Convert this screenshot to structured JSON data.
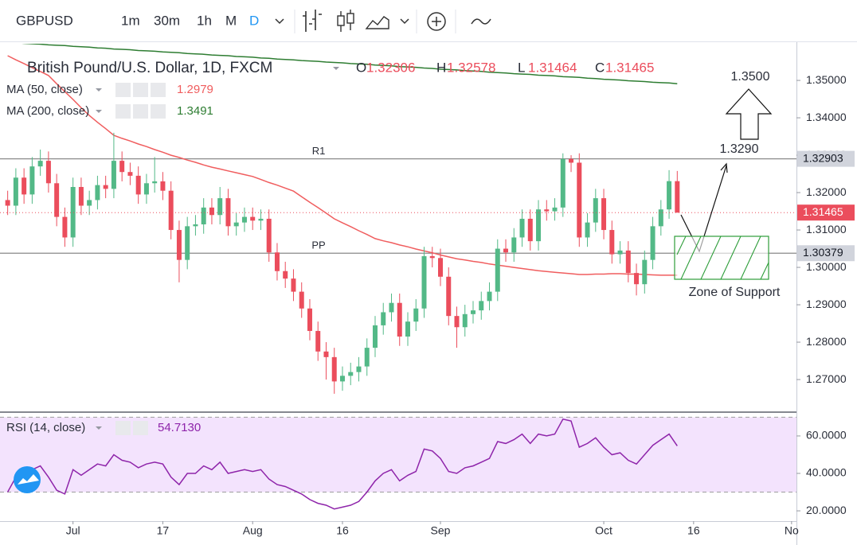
{
  "toolbar": {
    "symbol": "GBPUSD",
    "intervals": [
      "1m",
      "30m",
      "1h",
      "M",
      "D"
    ]
  },
  "chart_data": [
    {
      "type": "candlestick",
      "title": "British Pound/U.S. Dollar, 1D, FXCM",
      "ohlc_keys": [
        "O",
        "H",
        "L",
        "C"
      ],
      "up_color": "#53b987",
      "down_color": "#eb4d5c",
      "open": [
        1.318,
        1.3165,
        1.324,
        1.3195,
        1.327,
        1.3285,
        1.3225,
        1.3135,
        1.308,
        1.3215,
        1.3165,
        1.318,
        1.322,
        1.321,
        1.3285,
        1.3255,
        1.3245,
        1.3195,
        1.3225,
        1.323,
        1.3205,
        1.31,
        1.302,
        1.311,
        1.3115,
        1.316,
        1.314,
        1.3185,
        1.311,
        1.312,
        1.3135,
        1.3125,
        1.313,
        1.304,
        1.299,
        1.297,
        1.2935,
        1.289,
        1.283,
        1.2775,
        1.276,
        1.2695,
        1.271,
        1.272,
        1.2735,
        1.2785,
        1.2845,
        1.288,
        1.2905,
        1.2815,
        1.2855,
        1.289,
        1.303,
        1.3025,
        1.2975,
        1.287,
        1.284,
        1.2875,
        1.2885,
        1.291,
        1.2935,
        1.305,
        1.304,
        1.308,
        1.313,
        1.307,
        1.3155,
        1.315,
        1.316,
        1.329,
        1.328,
        1.308,
        1.312,
        1.3185,
        1.31,
        1.3035,
        1.3045,
        1.2985,
        1.2955,
        1.302,
        1.311,
        1.3155,
        1.32306
      ],
      "high": [
        1.3205,
        1.3265,
        1.3265,
        1.3295,
        1.3315,
        1.331,
        1.325,
        1.316,
        1.324,
        1.324,
        1.3205,
        1.3245,
        1.3245,
        1.336,
        1.331,
        1.328,
        1.327,
        1.325,
        1.3295,
        1.3255,
        1.323,
        1.3125,
        1.3135,
        1.314,
        1.3185,
        1.3185,
        1.3215,
        1.321,
        1.3145,
        1.316,
        1.316,
        1.3155,
        1.3155,
        1.3065,
        1.3015,
        1.2995,
        1.296,
        1.2915,
        1.2855,
        1.28,
        1.2785,
        1.2735,
        1.2745,
        1.276,
        1.281,
        1.287,
        1.2905,
        1.293,
        1.293,
        1.288,
        1.2915,
        1.3055,
        1.3055,
        1.305,
        1.3,
        1.2895,
        1.29,
        1.291,
        1.2935,
        1.296,
        1.3075,
        1.3075,
        1.3105,
        1.3155,
        1.3155,
        1.318,
        1.318,
        1.3185,
        1.3305,
        1.33,
        1.3305,
        1.3145,
        1.321,
        1.321,
        1.3125,
        1.307,
        1.307,
        1.301,
        1.3045,
        1.3135,
        1.318,
        1.326,
        1.32578
      ],
      "low": [
        1.314,
        1.314,
        1.317,
        1.317,
        1.3245,
        1.32,
        1.311,
        1.3055,
        1.3055,
        1.314,
        1.314,
        1.3155,
        1.3185,
        1.3185,
        1.323,
        1.322,
        1.317,
        1.317,
        1.32,
        1.318,
        1.3075,
        1.296,
        1.2995,
        1.3085,
        1.309,
        1.3115,
        1.3115,
        1.3085,
        1.3085,
        1.3095,
        1.31,
        1.31,
        1.3015,
        1.2965,
        1.2945,
        1.291,
        1.2865,
        1.2805,
        1.275,
        1.27,
        1.2662,
        1.267,
        1.2685,
        1.2695,
        1.271,
        1.276,
        1.282,
        1.2855,
        1.279,
        1.279,
        1.283,
        1.2865,
        1.3,
        1.295,
        1.2845,
        1.2785,
        1.2815,
        1.285,
        1.286,
        1.2885,
        1.291,
        1.3015,
        1.3015,
        1.3055,
        1.3045,
        1.3045,
        1.3125,
        1.3125,
        1.3135,
        1.3255,
        1.3055,
        1.3055,
        1.3095,
        1.3075,
        1.301,
        1.301,
        1.296,
        1.2925,
        1.293,
        1.2995,
        1.3085,
        1.313,
        1.31464
      ],
      "close": [
        1.3165,
        1.324,
        1.3195,
        1.327,
        1.3285,
        1.3225,
        1.3135,
        1.308,
        1.3215,
        1.3165,
        1.318,
        1.322,
        1.321,
        1.3285,
        1.3255,
        1.3245,
        1.3195,
        1.3225,
        1.323,
        1.3205,
        1.31,
        1.302,
        1.311,
        1.3115,
        1.316,
        1.314,
        1.3185,
        1.311,
        1.312,
        1.3135,
        1.3125,
        1.313,
        1.304,
        1.299,
        1.297,
        1.2935,
        1.289,
        1.283,
        1.2775,
        1.276,
        1.2695,
        1.271,
        1.272,
        1.2735,
        1.2785,
        1.2845,
        1.288,
        1.2905,
        1.2815,
        1.2855,
        1.289,
        1.303,
        1.3025,
        1.2975,
        1.287,
        1.284,
        1.2875,
        1.2885,
        1.291,
        1.2935,
        1.305,
        1.304,
        1.308,
        1.313,
        1.307,
        1.3155,
        1.315,
        1.316,
        1.329,
        1.328,
        1.308,
        1.312,
        1.3185,
        1.31,
        1.3035,
        1.3045,
        1.2985,
        1.2955,
        1.302,
        1.311,
        1.3155,
        1.32306,
        1.31465
      ],
      "series": [
        {
          "name": "MA (50, close)",
          "color": "#f05d5e",
          "values": [
            1.3566,
            1.3555,
            1.3545,
            1.3534,
            1.3524,
            1.3513,
            1.3491,
            1.347,
            1.3449,
            1.3427,
            1.3406,
            1.3388,
            1.3371,
            1.3353,
            1.3345,
            1.3338,
            1.333,
            1.3323,
            1.3315,
            1.3308,
            1.33,
            1.3294,
            1.3287,
            1.3281,
            1.3274,
            1.3268,
            1.3263,
            1.3258,
            1.3253,
            1.3248,
            1.3243,
            1.3235,
            1.3227,
            1.322,
            1.3212,
            1.3204,
            1.3189,
            1.3174,
            1.316,
            1.3145,
            1.313,
            1.3119,
            1.3109,
            1.3098,
            1.3088,
            1.3077,
            1.3071,
            1.3066,
            1.306,
            1.3055,
            1.3049,
            1.3044,
            1.3039,
            1.3033,
            1.3028,
            1.3023,
            1.302,
            1.3016,
            1.3013,
            1.3009,
            1.3006,
            1.3003,
            1.3,
            1.2997,
            1.2994,
            1.2991,
            1.2989,
            1.2987,
            1.2985,
            1.2983,
            1.2981,
            1.2981,
            1.2982,
            1.2982,
            1.2983,
            1.2983,
            1.2982,
            1.2982,
            1.2981,
            1.298,
            1.2979,
            1.2979,
            1.2979
          ]
        },
        {
          "name": "MA (200, close)",
          "color": "#2e7d32",
          "values": [
            1.3602,
            1.3601,
            1.3599,
            1.3598,
            1.3597,
            1.3595,
            1.3594,
            1.3593,
            1.3591,
            1.359,
            1.3589,
            1.3587,
            1.3586,
            1.3584,
            1.3583,
            1.3582,
            1.358,
            1.3579,
            1.3578,
            1.3576,
            1.3575,
            1.3574,
            1.3572,
            1.3571,
            1.357,
            1.3568,
            1.3567,
            1.3566,
            1.3564,
            1.3563,
            1.3562,
            1.356,
            1.3559,
            1.3557,
            1.3556,
            1.3555,
            1.3553,
            1.3552,
            1.3551,
            1.3549,
            1.3548,
            1.3547,
            1.3545,
            1.3544,
            1.3543,
            1.3541,
            1.354,
            1.3539,
            1.3537,
            1.3536,
            1.3535,
            1.3533,
            1.3532,
            1.353,
            1.3529,
            1.3528,
            1.3526,
            1.3525,
            1.3524,
            1.3522,
            1.3521,
            1.352,
            1.3518,
            1.3517,
            1.3516,
            1.3514,
            1.3513,
            1.3512,
            1.351,
            1.3509,
            1.3508,
            1.3506,
            1.3505,
            1.3503,
            1.3502,
            1.3501,
            1.3499,
            1.3498,
            1.3497,
            1.3495,
            1.3494,
            1.3493,
            1.3491
          ]
        }
      ],
      "levels": [
        {
          "name": "R1",
          "value": 1.32903
        },
        {
          "name": "PP",
          "value": 1.30379
        }
      ],
      "annotations": {
        "target_high": "1.3500",
        "target": "1.3290",
        "zone": "Zone of Support"
      },
      "xlim": [
        -0.94,
        96.6
      ],
      "xticks": [
        {
          "value": 8,
          "label": "Jul"
        },
        {
          "value": 19,
          "label": "17"
        },
        {
          "value": 30,
          "label": "Aug"
        },
        {
          "value": 41,
          "label": "16"
        },
        {
          "value": 53,
          "label": "Sep"
        },
        {
          "value": 73,
          "label": "Oct"
        },
        {
          "value": 84,
          "label": "16"
        },
        {
          "value": 96,
          "label": "No"
        }
      ],
      "ylim": [
        1.2615,
        1.3598
      ],
      "yticks": [
        {
          "value": 1.35,
          "label": "1.35000"
        },
        {
          "value": 1.34,
          "label": "1.34000"
        },
        {
          "value": 1.33,
          "label": "1.33000"
        },
        {
          "value": 1.32,
          "label": "1.32000"
        },
        {
          "value": 1.31,
          "label": "1.31000"
        },
        {
          "value": 1.3,
          "label": "1.30000"
        },
        {
          "value": 1.29,
          "label": "1.29000"
        },
        {
          "value": 1.28,
          "label": "1.28000"
        },
        {
          "value": 1.27,
          "label": "1.27000"
        }
      ]
    },
    {
      "type": "line",
      "series": [
        {
          "name": "RSI (14, close)",
          "color": "#8e24aa",
          "last_label": "54.7130",
          "values": [
            30,
            38,
            35,
            42,
            44,
            38,
            31,
            29,
            42,
            39,
            42,
            45,
            44,
            50,
            47,
            46,
            43,
            45,
            46,
            45,
            38,
            34,
            40,
            40,
            44,
            42,
            46,
            40,
            41,
            42,
            41,
            42,
            37,
            34,
            33,
            31,
            29,
            26,
            24,
            23,
            21,
            22,
            23,
            25,
            30,
            36,
            40,
            42,
            36,
            39,
            41,
            53,
            52,
            48,
            41,
            40,
            43,
            44,
            46,
            48,
            57,
            56,
            58,
            61,
            56,
            61,
            60,
            61,
            69,
            68,
            54,
            56,
            59,
            54,
            50,
            51,
            47,
            45,
            50,
            55,
            58,
            61,
            54.713
          ]
        }
      ],
      "band": [
        30,
        70
      ],
      "band_color": "#f3e3fd",
      "xlim": [
        -0.94,
        96.6
      ],
      "ylim": [
        14.5,
        72.3
      ],
      "yticks": [
        {
          "value": 60,
          "label": "60.0000"
        },
        {
          "value": 40,
          "label": "40.0000"
        },
        {
          "value": 20,
          "label": "20.0000"
        }
      ]
    }
  ]
}
